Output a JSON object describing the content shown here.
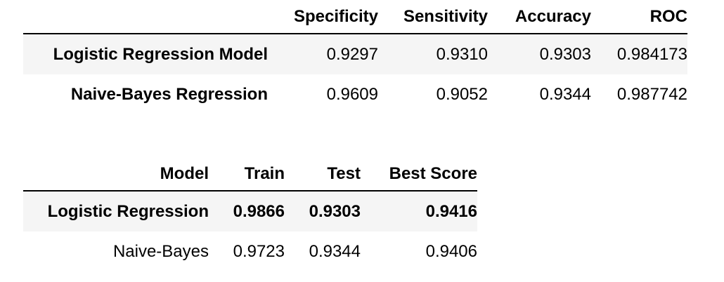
{
  "metrics_table": {
    "columns": [
      "",
      "Specificity",
      "Sensitivity",
      "Accuracy",
      "ROC"
    ],
    "rows": [
      {
        "label": "Logistic Regression Model",
        "specificity": "0.9297",
        "sensitivity": "0.9310",
        "accuracy": "0.9303",
        "roc": "0.984173"
      },
      {
        "label": "Naive-Bayes Regression",
        "specificity": "0.9609",
        "sensitivity": "0.9052",
        "accuracy": "0.9344",
        "roc": "0.987742"
      }
    ]
  },
  "scores_table": {
    "columns": [
      "Model",
      "Train",
      "Test",
      "Best Score"
    ],
    "rows": [
      {
        "model": "Logistic Regression",
        "train": "0.9866",
        "test": "0.9303",
        "best_score": "0.9416",
        "bold": true
      },
      {
        "model": "Naive-Bayes",
        "train": "0.9723",
        "test": "0.9344",
        "best_score": "0.9406",
        "bold": false
      }
    ]
  }
}
